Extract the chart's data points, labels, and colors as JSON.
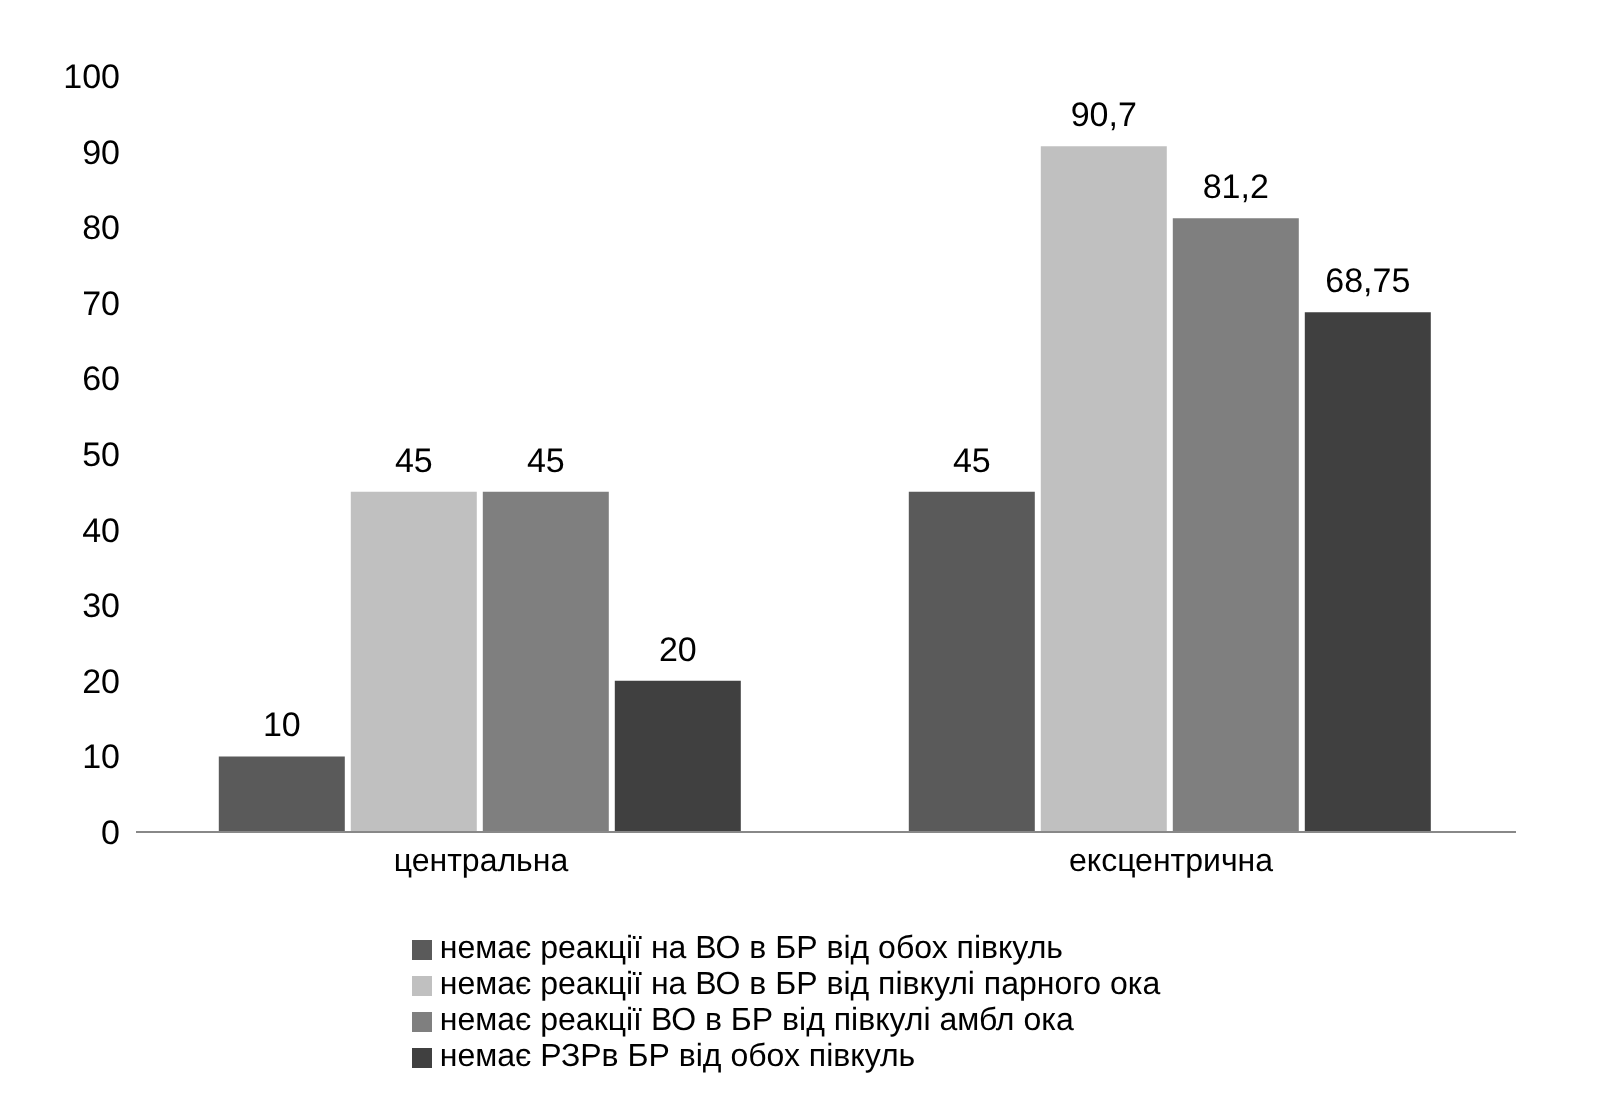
{
  "chart_data": {
    "type": "bar",
    "categories": [
      "центральна",
      "ексцентрична"
    ],
    "series": [
      {
        "name": "немає реакції на ВО в БР від обох півкуль",
        "color": "#5a5a5a",
        "values": [
          10,
          45
        ],
        "value_labels": [
          "10",
          "45"
        ]
      },
      {
        "name": "немає реакції на ВО в БР від півкулі парного ока",
        "color": "#c0c0c0",
        "values": [
          45,
          90.7
        ],
        "value_labels": [
          "45",
          "90,7"
        ]
      },
      {
        "name": "немає реакції ВО в БР від півкулі амбл ока",
        "color": "#7f7f7f",
        "values": [
          45,
          81.2
        ],
        "value_labels": [
          "45",
          "81,2"
        ]
      },
      {
        "name": "немає РЗРв БР від обох півкуль",
        "color": "#404040",
        "values": [
          20,
          68.75
        ],
        "value_labels": [
          "20",
          "68,75"
        ]
      }
    ],
    "ylim": [
      0,
      100
    ],
    "yticks": [
      0,
      10,
      20,
      30,
      40,
      50,
      60,
      70,
      80,
      90,
      100
    ],
    "legend": "bottom",
    "grid": false
  }
}
